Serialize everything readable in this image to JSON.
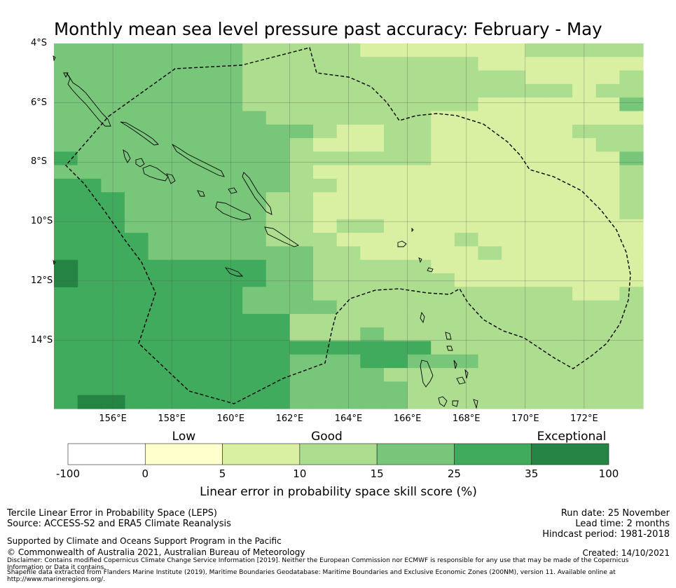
{
  "title": "Monthly mean sea level pressure past accuracy: February - May",
  "map": {
    "lat_ticks": [
      "4°S",
      "6°S",
      "8°S",
      "10°S",
      "12°S",
      "14°S"
    ],
    "lon_ticks": [
      "156°E",
      "158°E",
      "160°E",
      "162°E",
      "164°E",
      "166°E",
      "168°E",
      "170°E",
      "172°E"
    ],
    "lon_range": [
      154.0,
      174.0
    ],
    "lat_range": [
      -4.0,
      -16.3
    ],
    "grid_deg": 0.83,
    "skill_grid": [
      "5555555544444333333344444",
      "5555555544444444443333333",
      "5555555544444444444433334",
      "5555555544444444444444344",
      "5555555544444444443333335",
      "5555555554444444333333333",
      "5555555555543344333333444",
      "5555555555433344333333344",
      "6555555555444444333333335",
      "5555555555433333333333334",
      "6655555555443333333333334",
      "6665555554433333333333334",
      "6665555554433333333333334",
      "6665555554434433333333333",
      "6666555554443333343333333",
      "6666555555544333334333333",
      "6666666665544444333333333",
      "6666666665544444433333333",
      "6666666655544444444444334",
      "6666666655554444444444444",
      "6666666666444444444444444",
      "6666666666444544444444444",
      "6666666666666666444444444",
      "6666666666555665554444444",
      "6666666666555544444444444",
      "6666666666555554444444444",
      "6666666666555554444444444"
    ],
    "colors": {
      "below0": "#ffffff",
      "0-5": "#ffffcc",
      "5-10": "#d9f0a3",
      "10-15": "#addd8e",
      "15-25": "#78c679",
      "25-35": "#41ab5d",
      "35-100": "#238443",
      "coast": "#000000",
      "eez": "#000000",
      "gridline": "#555555"
    }
  },
  "colorbar": {
    "categories": [
      {
        "label": "Low",
        "at": 0
      },
      {
        "label": "Good",
        "at": 10
      },
      {
        "label": "Exceptional",
        "at": 100
      }
    ],
    "ticks": [
      "-100",
      "0",
      "5",
      "10",
      "15",
      "25",
      "35",
      "100"
    ],
    "bins": [
      {
        "from": -100,
        "to": 0,
        "color": "#ffffff"
      },
      {
        "from": 0,
        "to": 5,
        "color": "#ffffcc"
      },
      {
        "from": 5,
        "to": 10,
        "color": "#d9f0a3"
      },
      {
        "from": 10,
        "to": 15,
        "color": "#addd8e"
      },
      {
        "from": 15,
        "to": 25,
        "color": "#78c679"
      },
      {
        "from": 25,
        "to": 35,
        "color": "#41ab5d"
      },
      {
        "from": 35,
        "to": 100,
        "color": "#238443"
      }
    ],
    "label": "Linear error in probability space skill score (%)"
  },
  "footer": {
    "left1": "Tercile Linear Error in Probability Space (LEPS)",
    "left2": "Source: ACCESS-S2 and ERA5 Climate Reanalysis",
    "right1": "Run date: 25 November",
    "right2": "Lead time: 2 months",
    "right3": "Hindcast period: 1981-2018",
    "supported": "Supported by Climate and Oceans Support Program in the Pacific",
    "copyright": "© Commonwealth of Australia 2021, Australian Bureau of Meteorology",
    "created": "Created: 14/10/2021",
    "disclaimer": "Disclaimer: Contains modified Copernicus Climate Change Service Information [2019]. Neither the European Commission nor ECMWF is responsible for any use that may be made of the Copernicus Information or Data it contains.",
    "shapefile": "Shapefile data extracted from Flanders Marine Institute (2019), Maritime Boundaries Geodatabase: Maritime Boundaries and Exclusive Economic Zones (200NM), version 11. Available online at http://www.marineregions.org/."
  }
}
